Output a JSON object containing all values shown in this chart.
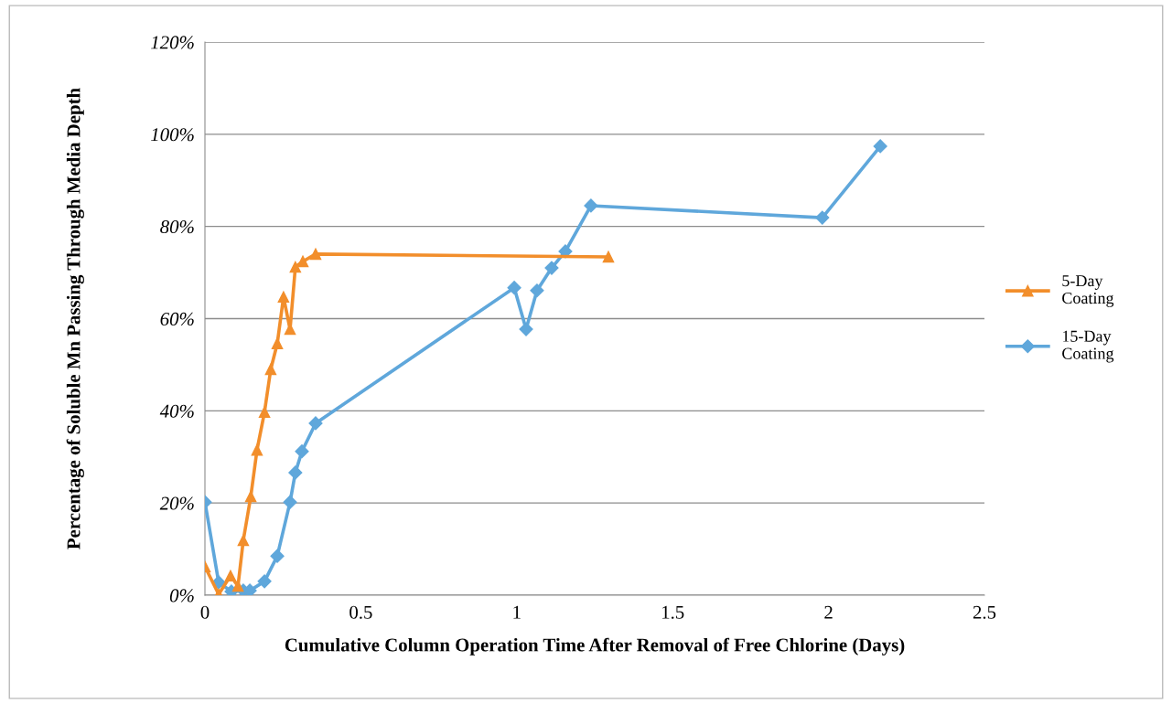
{
  "chart_data": {
    "type": "line",
    "xlabel": "Cumulative Column Operation Time After Removal of Free Chlorine (Days)",
    "ylabel": "Percentage of Soluble Mn Passing Through Media Depth",
    "xlim": [
      0,
      2.5
    ],
    "xticks": [
      0,
      0.5,
      1,
      1.5,
      2,
      2.5
    ],
    "ylim": [
      0,
      120
    ],
    "yticks": [
      {
        "value": 0,
        "label": "0%"
      },
      {
        "value": 20,
        "label": "20%"
      },
      {
        "value": 40,
        "label": "40%"
      },
      {
        "value": 60,
        "label": "60%"
      },
      {
        "value": 80,
        "label": "80%"
      },
      {
        "value": 100,
        "label": "100%"
      },
      {
        "value": 120,
        "label": "120%"
      }
    ],
    "grid": "y",
    "legend": "right",
    "line_style": "solid",
    "series": [
      {
        "name": "5-Day\nCoating",
        "color": "#f28e2b",
        "marker": "triangle",
        "x": [
          0,
          0.044,
          0.082,
          0.106,
          0.123,
          0.147,
          0.167,
          0.191,
          0.211,
          0.232,
          0.252,
          0.273,
          0.29,
          0.314,
          0.355,
          1.294
        ],
        "values": [
          6.2,
          0.2,
          4.2,
          2,
          11.9,
          21.4,
          31.5,
          39.7,
          49,
          54.6,
          64.7,
          57.7,
          71.2,
          72.4,
          74,
          73.4
        ]
      },
      {
        "name": "15-Day\nCoating",
        "color": "#5fa7db",
        "marker": "diamond",
        "x": [
          0,
          0.044,
          0.085,
          0.123,
          0.144,
          0.191,
          0.232,
          0.273,
          0.29,
          0.311,
          0.355,
          0.992,
          1.03,
          1.065,
          1.112,
          1.156,
          1.238,
          1.98,
          2.166
        ],
        "values": [
          20.2,
          2.8,
          0.8,
          1,
          1,
          3,
          8.5,
          20.2,
          26.6,
          31.2,
          37.3,
          66.7,
          57.7,
          66.1,
          71,
          74.6,
          84.5,
          81.9,
          97.4
        ]
      }
    ]
  }
}
